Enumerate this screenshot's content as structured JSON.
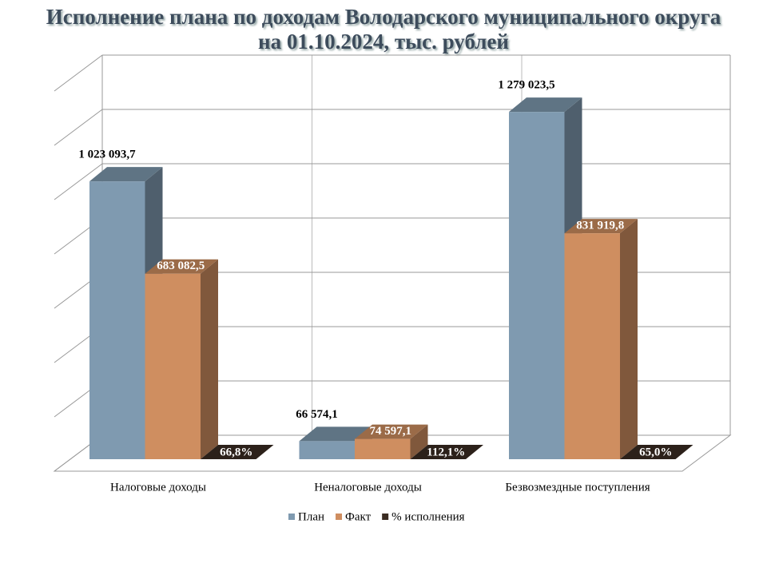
{
  "chart_data": {
    "type": "bar3d",
    "title": "Исполнение плана по доходам Володарского муниципального округа\nна 01.10.2024, тыс. рублей",
    "categories": [
      "Налоговые доходы",
      "Неналоговые доходы",
      "Безвозмездные поступления"
    ],
    "series": [
      {
        "name": "План",
        "color": "#7f9ab0",
        "values": [
          1023093.7,
          66574.1,
          1279023.5
        ],
        "value_labels": [
          "1 023 093,7",
          "66 574,1",
          "1 279 023,5"
        ]
      },
      {
        "name": "Факт",
        "color": "#cf8e60",
        "values": [
          683082.5,
          74597.1,
          831919.8
        ],
        "value_labels": [
          "683 082,5",
          "74 597,1",
          "831 919,8"
        ]
      },
      {
        "name": "% исполнения",
        "color": "#3b2c22",
        "values": [
          66.8,
          112.1,
          65.0
        ],
        "value_labels": [
          "66,8%",
          "112,1%",
          "65,0%"
        ]
      }
    ],
    "ylim": [
      0,
      1400000
    ],
    "yticks": [
      0,
      200000,
      400000,
      600000,
      800000,
      1000000,
      1200000,
      1400000
    ],
    "show_tick_labels": false,
    "grid": true,
    "legend": "bottom"
  }
}
